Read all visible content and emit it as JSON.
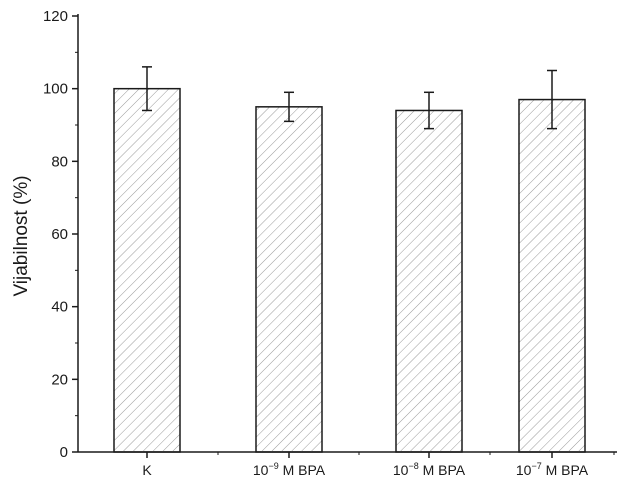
{
  "chart_data": {
    "type": "bar",
    "title": "",
    "xlabel": "",
    "ylabel": "Vijabilnost (%)",
    "ylim": [
      0,
      120
    ],
    "y_ticks": [
      0,
      20,
      40,
      60,
      80,
      100,
      120
    ],
    "categories": [
      {
        "base": "K",
        "exp": "",
        "rest": ""
      },
      {
        "base": "10",
        "exp": "−9",
        "rest": " M BPA"
      },
      {
        "base": "10",
        "exp": "−8",
        "rest": " M BPA"
      },
      {
        "base": "10",
        "exp": "−7",
        "rest": " M BPA"
      }
    ],
    "values": [
      100,
      95,
      94,
      97
    ],
    "error_low": [
      94,
      91,
      89,
      89
    ],
    "error_high": [
      106,
      99,
      99,
      105
    ],
    "grid": false,
    "legend": "none",
    "bar_fill": "hatched",
    "colors": {
      "bar_stroke": "#1a1a1a",
      "hatch": "#9a9a9a",
      "axis": "#1a1a1a"
    }
  }
}
